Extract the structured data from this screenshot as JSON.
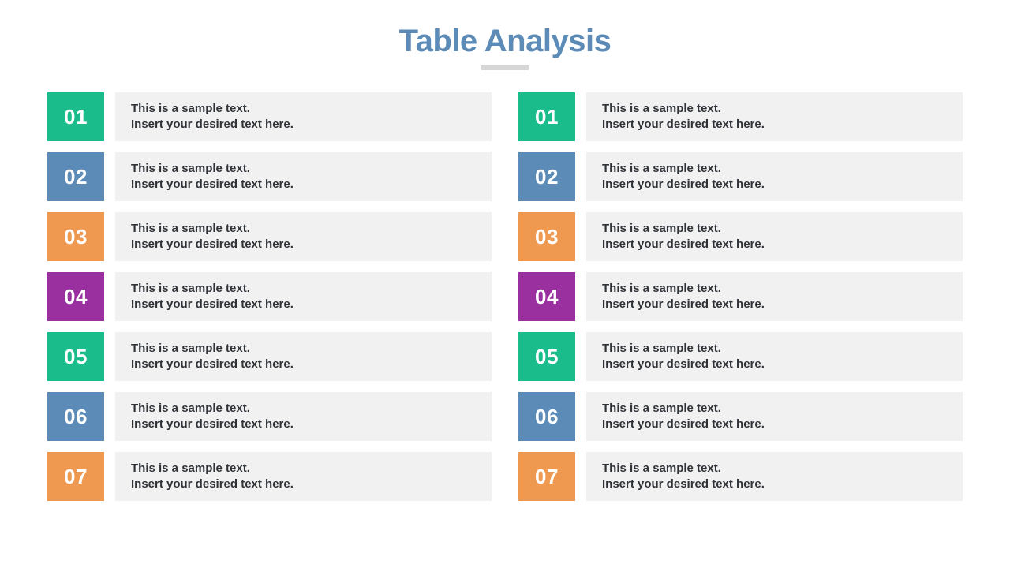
{
  "title": {
    "text": "Table Analysis",
    "color": "#5b8bb6",
    "underline_color": "#d6d6d6"
  },
  "layout": {
    "row_bg": "#f1f1f1",
    "text_color": "#2f3338",
    "badge_text_color": "#ffffff"
  },
  "left": [
    {
      "num": "01",
      "color": "#1abc8c",
      "line1": "This is a sample text.",
      "line2": "Insert your desired text here."
    },
    {
      "num": "02",
      "color": "#5b8bb6",
      "line1": "This is a sample text.",
      "line2": "Insert your desired text here."
    },
    {
      "num": "03",
      "color": "#ef9850",
      "line1": "This is a sample text.",
      "line2": "Insert your desired text here."
    },
    {
      "num": "04",
      "color": "#9a2fa0",
      "line1": "This is a sample text.",
      "line2": "Insert your desired text here."
    },
    {
      "num": "05",
      "color": "#1abc8c",
      "line1": "This is a sample text.",
      "line2": "Insert your desired text here."
    },
    {
      "num": "06",
      "color": "#5b8bb6",
      "line1": "This is a sample text.",
      "line2": "Insert your desired text here."
    },
    {
      "num": "07",
      "color": "#ef9850",
      "line1": "This is a sample text.",
      "line2": "Insert your desired text here."
    }
  ],
  "right": [
    {
      "num": "01",
      "color": "#1abc8c",
      "line1": "This is a sample text.",
      "line2": "Insert your desired text here."
    },
    {
      "num": "02",
      "color": "#5b8bb6",
      "line1": "This is a sample text.",
      "line2": "Insert your desired text here."
    },
    {
      "num": "03",
      "color": "#ef9850",
      "line1": "This is a sample text.",
      "line2": "Insert your desired text here."
    },
    {
      "num": "04",
      "color": "#9a2fa0",
      "line1": "This is a sample text.",
      "line2": "Insert your desired text here."
    },
    {
      "num": "05",
      "color": "#1abc8c",
      "line1": "This is a sample text.",
      "line2": "Insert your desired text here."
    },
    {
      "num": "06",
      "color": "#5b8bb6",
      "line1": "This is a sample text.",
      "line2": "Insert your desired text here."
    },
    {
      "num": "07",
      "color": "#ef9850",
      "line1": "This is a sample text.",
      "line2": "Insert your desired text here."
    }
  ]
}
